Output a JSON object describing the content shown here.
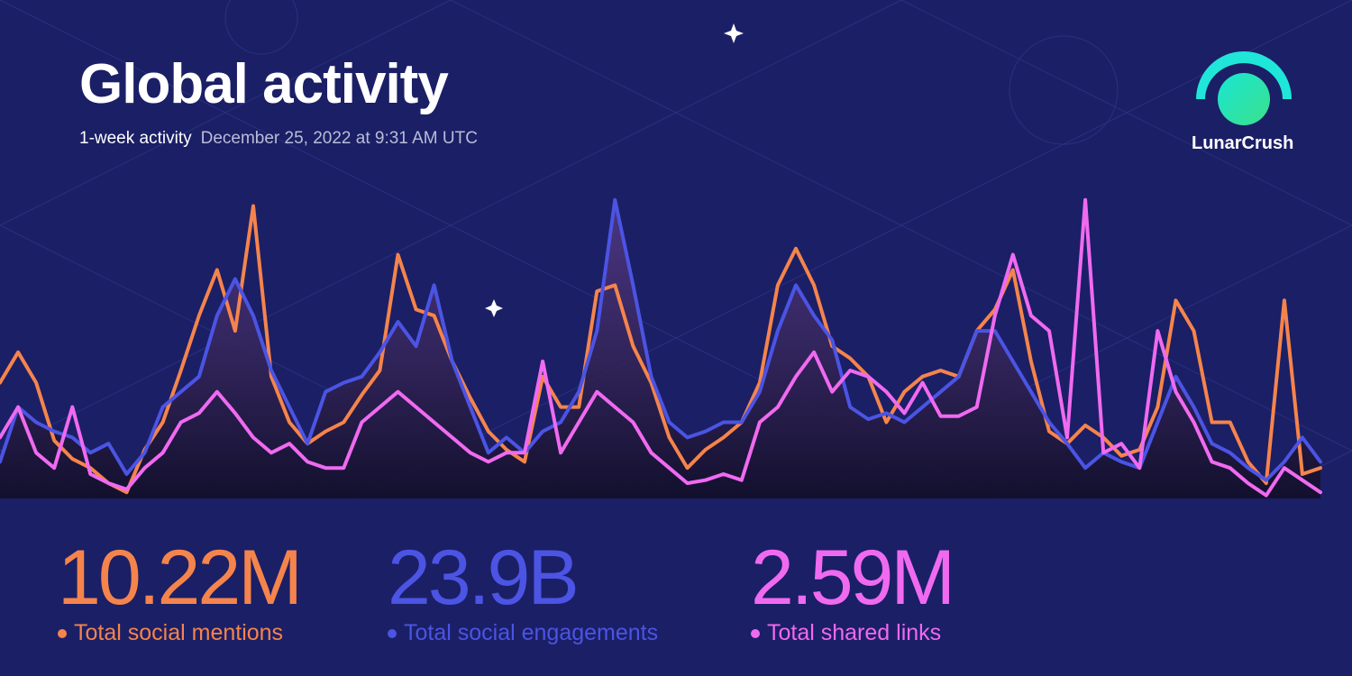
{
  "header": {
    "title": "Global activity",
    "period": "1-week activity",
    "date": "December 25, 2022 at 9:31 AM UTC",
    "brand": "LunarCrush"
  },
  "chart_data": {
    "type": "line",
    "ylim": [
      0,
      100
    ],
    "series": [
      {
        "name": "Total social mentions",
        "color": "#f5844c",
        "values": [
          38,
          48,
          38,
          19,
          13,
          10,
          5,
          2,
          16,
          25,
          42,
          60,
          75,
          55,
          96,
          40,
          25,
          18,
          22,
          25,
          34,
          42,
          80,
          62,
          60,
          45,
          33,
          22,
          16,
          12,
          40,
          30,
          30,
          68,
          70,
          50,
          38,
          20,
          10,
          16,
          20,
          25,
          38,
          70,
          82,
          70,
          50,
          46,
          40,
          25,
          35,
          40,
          42,
          40,
          55,
          62,
          75,
          45,
          22,
          18,
          24,
          20,
          14,
          16,
          30,
          65,
          55,
          25,
          25,
          12,
          5,
          65,
          8,
          10
        ]
      },
      {
        "name": "Total social engagements",
        "color": "#4b54e3",
        "values": [
          12,
          30,
          25,
          22,
          20,
          15,
          18,
          8,
          15,
          30,
          35,
          40,
          60,
          72,
          60,
          42,
          30,
          18,
          35,
          38,
          40,
          48,
          58,
          50,
          70,
          45,
          30,
          15,
          20,
          15,
          22,
          25,
          35,
          55,
          98,
          70,
          40,
          25,
          20,
          22,
          25,
          25,
          35,
          55,
          70,
          60,
          52,
          30,
          26,
          28,
          25,
          30,
          35,
          40,
          55,
          55,
          45,
          35,
          25,
          18,
          10,
          15,
          12,
          10,
          25,
          40,
          30,
          18,
          15,
          10,
          6,
          12,
          20,
          12
        ]
      },
      {
        "name": "Total shared links",
        "color": "#f06af0",
        "values": [
          20,
          30,
          15,
          10,
          30,
          8,
          5,
          3,
          10,
          15,
          25,
          28,
          35,
          28,
          20,
          15,
          18,
          12,
          10,
          10,
          25,
          30,
          35,
          30,
          25,
          20,
          15,
          12,
          15,
          15,
          45,
          15,
          25,
          35,
          30,
          25,
          15,
          10,
          5,
          6,
          8,
          6,
          25,
          30,
          40,
          48,
          35,
          42,
          40,
          35,
          28,
          38,
          27,
          27,
          30,
          60,
          80,
          60,
          55,
          20,
          98,
          15,
          18,
          10,
          55,
          35,
          25,
          12,
          10,
          5,
          1,
          10,
          6,
          2
        ]
      }
    ]
  },
  "stats": [
    {
      "value": "10.22M",
      "label": "Total social mentions",
      "color": "#f5844c"
    },
    {
      "value": "23.9B",
      "label": "Total social engagements",
      "color": "#4b54e3"
    },
    {
      "value": "2.59M",
      "label": "Total shared links",
      "color": "#f06af0"
    }
  ]
}
